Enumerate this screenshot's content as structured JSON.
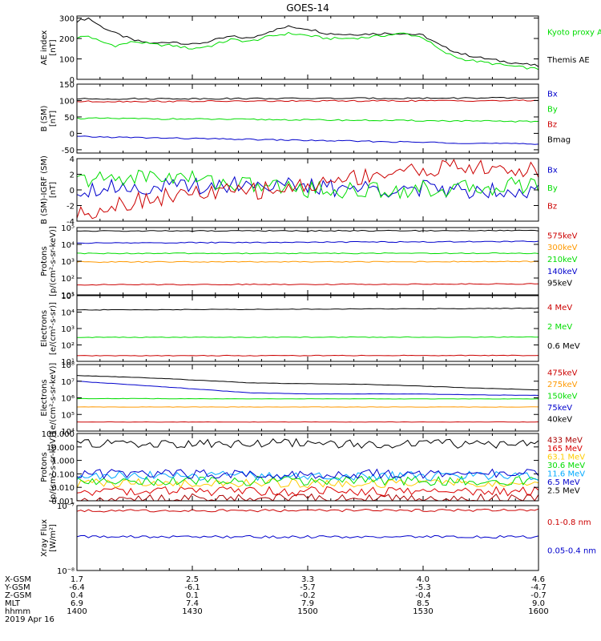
{
  "title": "GOES-14",
  "x_axis": {
    "tick_rows": [
      {
        "label": "X-GSM",
        "values": [
          "1.7",
          "2.5",
          "3.3",
          "4.0",
          "4.6"
        ]
      },
      {
        "label": "Y-GSM",
        "values": [
          "-6.4",
          "-6.1",
          "-5.7",
          "-5.3",
          "-4.7"
        ]
      },
      {
        "label": "Z-GSM",
        "values": [
          "0.4",
          "0.1",
          "-0.2",
          "-0.4",
          "-0.7"
        ]
      },
      {
        "label": "MLT",
        "values": [
          "6.9",
          "7.4",
          "7.9",
          "8.5",
          "9.0"
        ]
      },
      {
        "label": "hhmm",
        "values": [
          "1400",
          "1430",
          "1500",
          "1530",
          "1600"
        ]
      }
    ],
    "date": "2019 Apr 16"
  },
  "chart_data": [
    {
      "type": "line",
      "ylabel": "AE index\n[nT]",
      "yscale": "linear",
      "ylim": [
        0,
        310
      ],
      "yticks": [
        0,
        100,
        200,
        300
      ],
      "ytick_labels": [
        "0",
        "100",
        "200",
        "300"
      ],
      "x": [
        1400,
        1403,
        1406,
        1410,
        1415,
        1420,
        1425,
        1430,
        1435,
        1440,
        1445,
        1450,
        1455,
        1500,
        1505,
        1510,
        1515,
        1520,
        1525,
        1530,
        1535,
        1540,
        1545,
        1550,
        1555,
        1600
      ],
      "series": [
        {
          "name": "Themis AE",
          "color": "#000000",
          "values": [
            285,
            300,
            262,
            225,
            190,
            175,
            185,
            170,
            188,
            210,
            200,
            235,
            258,
            248,
            225,
            220,
            222,
            225,
            225,
            215,
            160,
            125,
            105,
            90,
            78,
            65
          ]
        },
        {
          "name": "Kyoto proxy AE",
          "color": "#00dd00",
          "values": [
            205,
            212,
            185,
            165,
            185,
            170,
            165,
            150,
            165,
            195,
            185,
            210,
            225,
            215,
            200,
            200,
            205,
            215,
            225,
            205,
            135,
            100,
            85,
            72,
            60,
            50
          ]
        }
      ],
      "legend": [
        "Kyoto proxy AE",
        "Themis AE"
      ]
    },
    {
      "type": "line",
      "ylabel": "B (SM)\n[nT]",
      "yscale": "linear",
      "ylim": [
        -60,
        150
      ],
      "yticks": [
        -50,
        0,
        50,
        100,
        150
      ],
      "ytick_labels": [
        "-50",
        "0",
        "50",
        "100",
        "150"
      ],
      "x": [
        1400,
        1600
      ],
      "series": [
        {
          "name": "Bx",
          "color": "#0000cc",
          "values": [
            -10,
            -33
          ]
        },
        {
          "name": "By",
          "color": "#00dd00",
          "values": [
            46,
            36
          ]
        },
        {
          "name": "Bz",
          "color": "#cc0000",
          "values": [
            97,
            100
          ]
        },
        {
          "name": "Bmag",
          "color": "#000000",
          "values": [
            105,
            108
          ]
        }
      ],
      "legend": [
        "Bx",
        "By",
        "Bz",
        "Bmag"
      ]
    },
    {
      "type": "line",
      "ylabel": "B (SM)-IGRF (SM)\n[nT]",
      "yscale": "linear",
      "ylim": [
        -4,
        4
      ],
      "yticks": [
        -4,
        -2,
        0,
        2,
        4
      ],
      "ytick_labels": [
        "-4",
        "-2",
        "0",
        "2",
        "4"
      ],
      "x": [
        1400,
        1410,
        1420,
        1430,
        1440,
        1450,
        1500,
        1510,
        1520,
        1530,
        1540,
        1550,
        1600
      ],
      "series": [
        {
          "name": "Bx",
          "color": "#0000cc",
          "values": [
            0.0,
            0.5,
            0.3,
            0.5,
            0.8,
            0.8,
            0.3,
            0.2,
            0.2,
            0.1,
            0.0,
            0.1,
            0.0
          ]
        },
        {
          "name": "By",
          "color": "#00dd00",
          "values": [
            1.2,
            1.5,
            1.8,
            1.5,
            0.8,
            0.5,
            0.1,
            -0.1,
            0.0,
            0.1,
            0.1,
            0.5,
            0.8
          ]
        },
        {
          "name": "Bz",
          "color": "#cc0000",
          "values": [
            -3.2,
            -1.8,
            -1.0,
            -0.5,
            -0.3,
            0.0,
            0.5,
            1.5,
            2.2,
            2.6,
            3.0,
            2.5,
            2.5
          ]
        }
      ],
      "legend": [
        "Bx",
        "By",
        "Bz"
      ]
    },
    {
      "type": "line",
      "ylabel": "Protons\n[p/(cm²-s-sr-keV)]",
      "yscale": "log",
      "ylim": [
        10,
        100000
      ],
      "yticks": [
        10,
        100,
        1000,
        10000,
        100000
      ],
      "ytick_labels": [
        "10¹",
        "10²",
        "10³",
        "10⁴",
        "10⁵"
      ],
      "x": [
        1400,
        1600
      ],
      "series": [
        {
          "name": "575keV",
          "color": "#cc0000",
          "values": [
            40,
            45
          ]
        },
        {
          "name": "300keV",
          "color": "#ff9900",
          "values": [
            900,
            950
          ]
        },
        {
          "name": "210keV",
          "color": "#00dd00",
          "values": [
            2900,
            3000
          ]
        },
        {
          "name": "140keV",
          "color": "#0000cc",
          "values": [
            12000,
            15000
          ]
        },
        {
          "name": "95keV",
          "color": "#000000",
          "values": [
            62000,
            66000
          ]
        }
      ],
      "legend": [
        "575keV",
        "300keV",
        "210keV",
        "140keV",
        "95keV"
      ]
    },
    {
      "type": "line",
      "ylabel": "Electrons\n[e/(cm²-s-sr)]",
      "yscale": "log",
      "ylim": [
        10,
        100000
      ],
      "yticks": [
        10,
        100,
        1000,
        10000,
        100000
      ],
      "ytick_labels": [
        "10¹",
        "10²",
        "10³",
        "10⁴",
        "10⁵"
      ],
      "x": [
        1400,
        1600
      ],
      "series": [
        {
          "name": "4 MeV",
          "color": "#cc0000",
          "values": [
            22,
            23
          ]
        },
        {
          "name": "2 MeV",
          "color": "#00dd00",
          "values": [
            290,
            300
          ]
        },
        {
          "name": "0.6 MeV",
          "color": "#000000",
          "values": [
            13500,
            17000
          ]
        }
      ],
      "legend": [
        "4 MeV",
        "2 MeV",
        "0.6 MeV"
      ]
    },
    {
      "type": "line",
      "ylabel": "Electrons\n[e/(cm²-s-sr-keV)]",
      "yscale": "log",
      "ylim": [
        10000,
        100000000
      ],
      "yticks": [
        10000,
        100000,
        1000000,
        10000000,
        100000000
      ],
      "ytick_labels": [
        "10⁴",
        "10⁵",
        "10⁶",
        "10⁷",
        "10⁸"
      ],
      "x": [
        1400,
        1415,
        1430,
        1445,
        1500,
        1515,
        1530,
        1545,
        1600
      ],
      "series": [
        {
          "name": "475keV",
          "color": "#cc0000",
          "values": [
            35000,
            35000,
            35000,
            35000,
            35000,
            35000,
            35000,
            35000,
            35000
          ]
        },
        {
          "name": "275keV",
          "color": "#ff9900",
          "values": [
            280000,
            280000,
            280000,
            280000,
            280000,
            280000,
            280000,
            280000,
            280000
          ]
        },
        {
          "name": "150keV",
          "color": "#00dd00",
          "values": [
            900000,
            900000,
            880000,
            870000,
            870000,
            870000,
            860000,
            860000,
            850000
          ]
        },
        {
          "name": "75keV",
          "color": "#0000cc",
          "values": [
            10000000,
            6000000,
            3500000,
            2000000,
            1700000,
            1700000,
            1700000,
            1500000,
            1400000
          ]
        },
        {
          "name": "40keV",
          "color": "#000000",
          "values": [
            22000000,
            17000000,
            12000000,
            8000000,
            7000000,
            6500000,
            5000000,
            3800000,
            3000000
          ]
        }
      ],
      "legend": [
        "475keV",
        "275keV",
        "150keV",
        "75keV",
        "40keV"
      ]
    },
    {
      "type": "line",
      "ylabel": "Protons\n[p/(cm²-s-sr-keV)]",
      "yscale": "log",
      "ylim": [
        0.001,
        100
      ],
      "yticks": [
        0.001,
        0.01,
        0.1,
        1,
        10,
        100
      ],
      "ytick_labels": [
        "0.001",
        "0.010",
        "0.100",
        "1.000",
        "10.000",
        "100.000"
      ],
      "x": [
        1400,
        1600
      ],
      "series": [
        {
          "name": "433 MeV",
          "color": "#aa0000",
          "values": [
            0.0015,
            0.0015
          ]
        },
        {
          "name": "165 MeV",
          "color": "#dd0000",
          "values": [
            0.005,
            0.005
          ]
        },
        {
          "name": "63.1 MeV",
          "color": "#ffcc00",
          "values": [
            0.02,
            0.02
          ]
        },
        {
          "name": "30.6 MeV",
          "color": "#00dd00",
          "values": [
            0.03,
            0.03
          ]
        },
        {
          "name": "11.6 MeV",
          "color": "#00aaff",
          "values": [
            0.07,
            0.07
          ]
        },
        {
          "name": "6.5 MeV",
          "color": "#0000cc",
          "values": [
            0.1,
            0.1
          ]
        },
        {
          "name": "2.5 MeV",
          "color": "#000000",
          "values": [
            18,
            18
          ]
        }
      ],
      "legend": [
        "433 MeV",
        "165 MeV",
        "63.1 MeV",
        "30.6 MeV",
        "11.6 MeV",
        "6.5 MeV",
        "2.5 MeV"
      ]
    },
    {
      "type": "line",
      "ylabel": "Xray Flux\n[W/m²]",
      "yscale": "log",
      "ylim": [
        1e-08,
        1e-07
      ],
      "yticks": [
        1e-08,
        1e-07
      ],
      "ytick_labels": [
        "10⁻⁸",
        "10⁻⁷"
      ],
      "x": [
        1400,
        1600
      ],
      "series": [
        {
          "name": "0.1-0.8 nm",
          "color": "#cc0000",
          "values": [
            8.3e-08,
            8.5e-08
          ]
        },
        {
          "name": "0.05-0.4 nm",
          "color": "#0000cc",
          "values": [
            3.3e-08,
            3.3e-08
          ]
        }
      ],
      "legend": [
        "0.1-0.8 nm",
        "0.05-0.4 nm"
      ]
    }
  ]
}
